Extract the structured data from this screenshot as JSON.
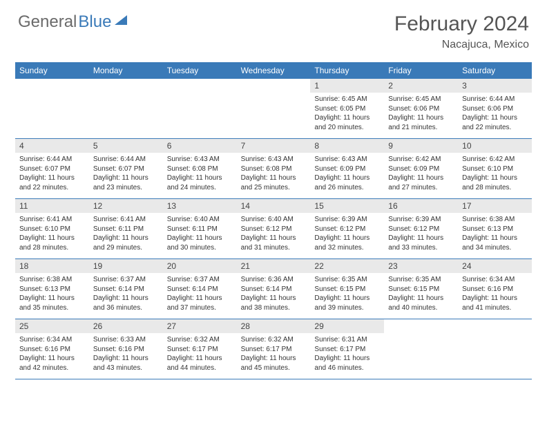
{
  "brand": {
    "part1": "General",
    "part2": "Blue"
  },
  "title": "February 2024",
  "location": "Nacajuca, Mexico",
  "colors": {
    "header_bar": "#3a7ab8",
    "daynum_bg": "#e9e9e9",
    "divider": "#3a7ab8",
    "text": "#333333",
    "logo_gray": "#6a6a6a"
  },
  "days_of_week": [
    "Sunday",
    "Monday",
    "Tuesday",
    "Wednesday",
    "Thursday",
    "Friday",
    "Saturday"
  ],
  "weeks": [
    [
      {
        "n": "",
        "sunrise": "",
        "sunset": "",
        "daylight": ""
      },
      {
        "n": "",
        "sunrise": "",
        "sunset": "",
        "daylight": ""
      },
      {
        "n": "",
        "sunrise": "",
        "sunset": "",
        "daylight": ""
      },
      {
        "n": "",
        "sunrise": "",
        "sunset": "",
        "daylight": ""
      },
      {
        "n": "1",
        "sunrise": "Sunrise: 6:45 AM",
        "sunset": "Sunset: 6:05 PM",
        "daylight": "Daylight: 11 hours and 20 minutes."
      },
      {
        "n": "2",
        "sunrise": "Sunrise: 6:45 AM",
        "sunset": "Sunset: 6:06 PM",
        "daylight": "Daylight: 11 hours and 21 minutes."
      },
      {
        "n": "3",
        "sunrise": "Sunrise: 6:44 AM",
        "sunset": "Sunset: 6:06 PM",
        "daylight": "Daylight: 11 hours and 22 minutes."
      }
    ],
    [
      {
        "n": "4",
        "sunrise": "Sunrise: 6:44 AM",
        "sunset": "Sunset: 6:07 PM",
        "daylight": "Daylight: 11 hours and 22 minutes."
      },
      {
        "n": "5",
        "sunrise": "Sunrise: 6:44 AM",
        "sunset": "Sunset: 6:07 PM",
        "daylight": "Daylight: 11 hours and 23 minutes."
      },
      {
        "n": "6",
        "sunrise": "Sunrise: 6:43 AM",
        "sunset": "Sunset: 6:08 PM",
        "daylight": "Daylight: 11 hours and 24 minutes."
      },
      {
        "n": "7",
        "sunrise": "Sunrise: 6:43 AM",
        "sunset": "Sunset: 6:08 PM",
        "daylight": "Daylight: 11 hours and 25 minutes."
      },
      {
        "n": "8",
        "sunrise": "Sunrise: 6:43 AM",
        "sunset": "Sunset: 6:09 PM",
        "daylight": "Daylight: 11 hours and 26 minutes."
      },
      {
        "n": "9",
        "sunrise": "Sunrise: 6:42 AM",
        "sunset": "Sunset: 6:09 PM",
        "daylight": "Daylight: 11 hours and 27 minutes."
      },
      {
        "n": "10",
        "sunrise": "Sunrise: 6:42 AM",
        "sunset": "Sunset: 6:10 PM",
        "daylight": "Daylight: 11 hours and 28 minutes."
      }
    ],
    [
      {
        "n": "11",
        "sunrise": "Sunrise: 6:41 AM",
        "sunset": "Sunset: 6:10 PM",
        "daylight": "Daylight: 11 hours and 28 minutes."
      },
      {
        "n": "12",
        "sunrise": "Sunrise: 6:41 AM",
        "sunset": "Sunset: 6:11 PM",
        "daylight": "Daylight: 11 hours and 29 minutes."
      },
      {
        "n": "13",
        "sunrise": "Sunrise: 6:40 AM",
        "sunset": "Sunset: 6:11 PM",
        "daylight": "Daylight: 11 hours and 30 minutes."
      },
      {
        "n": "14",
        "sunrise": "Sunrise: 6:40 AM",
        "sunset": "Sunset: 6:12 PM",
        "daylight": "Daylight: 11 hours and 31 minutes."
      },
      {
        "n": "15",
        "sunrise": "Sunrise: 6:39 AM",
        "sunset": "Sunset: 6:12 PM",
        "daylight": "Daylight: 11 hours and 32 minutes."
      },
      {
        "n": "16",
        "sunrise": "Sunrise: 6:39 AM",
        "sunset": "Sunset: 6:12 PM",
        "daylight": "Daylight: 11 hours and 33 minutes."
      },
      {
        "n": "17",
        "sunrise": "Sunrise: 6:38 AM",
        "sunset": "Sunset: 6:13 PM",
        "daylight": "Daylight: 11 hours and 34 minutes."
      }
    ],
    [
      {
        "n": "18",
        "sunrise": "Sunrise: 6:38 AM",
        "sunset": "Sunset: 6:13 PM",
        "daylight": "Daylight: 11 hours and 35 minutes."
      },
      {
        "n": "19",
        "sunrise": "Sunrise: 6:37 AM",
        "sunset": "Sunset: 6:14 PM",
        "daylight": "Daylight: 11 hours and 36 minutes."
      },
      {
        "n": "20",
        "sunrise": "Sunrise: 6:37 AM",
        "sunset": "Sunset: 6:14 PM",
        "daylight": "Daylight: 11 hours and 37 minutes."
      },
      {
        "n": "21",
        "sunrise": "Sunrise: 6:36 AM",
        "sunset": "Sunset: 6:14 PM",
        "daylight": "Daylight: 11 hours and 38 minutes."
      },
      {
        "n": "22",
        "sunrise": "Sunrise: 6:35 AM",
        "sunset": "Sunset: 6:15 PM",
        "daylight": "Daylight: 11 hours and 39 minutes."
      },
      {
        "n": "23",
        "sunrise": "Sunrise: 6:35 AM",
        "sunset": "Sunset: 6:15 PM",
        "daylight": "Daylight: 11 hours and 40 minutes."
      },
      {
        "n": "24",
        "sunrise": "Sunrise: 6:34 AM",
        "sunset": "Sunset: 6:16 PM",
        "daylight": "Daylight: 11 hours and 41 minutes."
      }
    ],
    [
      {
        "n": "25",
        "sunrise": "Sunrise: 6:34 AM",
        "sunset": "Sunset: 6:16 PM",
        "daylight": "Daylight: 11 hours and 42 minutes."
      },
      {
        "n": "26",
        "sunrise": "Sunrise: 6:33 AM",
        "sunset": "Sunset: 6:16 PM",
        "daylight": "Daylight: 11 hours and 43 minutes."
      },
      {
        "n": "27",
        "sunrise": "Sunrise: 6:32 AM",
        "sunset": "Sunset: 6:17 PM",
        "daylight": "Daylight: 11 hours and 44 minutes."
      },
      {
        "n": "28",
        "sunrise": "Sunrise: 6:32 AM",
        "sunset": "Sunset: 6:17 PM",
        "daylight": "Daylight: 11 hours and 45 minutes."
      },
      {
        "n": "29",
        "sunrise": "Sunrise: 6:31 AM",
        "sunset": "Sunset: 6:17 PM",
        "daylight": "Daylight: 11 hours and 46 minutes."
      },
      {
        "n": "",
        "sunrise": "",
        "sunset": "",
        "daylight": ""
      },
      {
        "n": "",
        "sunrise": "",
        "sunset": "",
        "daylight": ""
      }
    ]
  ]
}
